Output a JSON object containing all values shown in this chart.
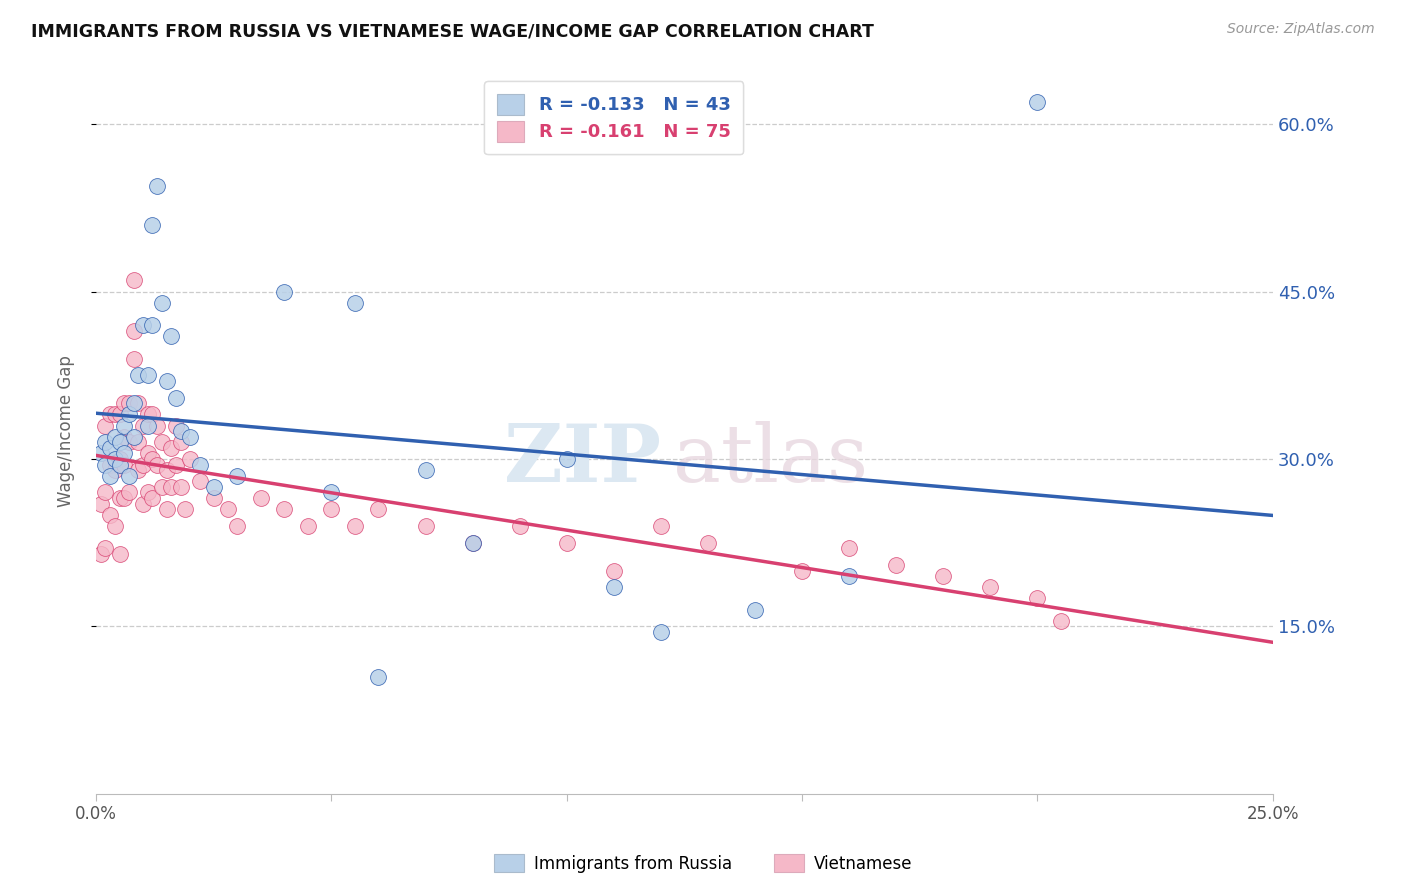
{
  "title": "IMMIGRANTS FROM RUSSIA VS VIETNAMESE WAGE/INCOME GAP CORRELATION CHART",
  "source": "Source: ZipAtlas.com",
  "ylabel": "Wage/Income Gap",
  "right_yticks": [
    0.15,
    0.3,
    0.45,
    0.6
  ],
  "right_ytick_labels": [
    "15.0%",
    "30.0%",
    "45.0%",
    "60.0%"
  ],
  "xmin": 0.0,
  "xmax": 0.25,
  "ymin": 0.0,
  "ymax": 0.65,
  "legend1_label": "R = -0.133   N = 43",
  "legend2_label": "R = -0.161   N = 75",
  "legend_bottom1": "Immigrants from Russia",
  "legend_bottom2": "Vietnamese",
  "color_blue": "#b8d0e8",
  "color_pink": "#f5b8c8",
  "line_color_blue": "#3060b0",
  "line_color_pink": "#d84070",
  "watermark_zip": "ZIP",
  "watermark_atlas": "atlas",
  "russia_x": [
    0.001,
    0.002,
    0.002,
    0.003,
    0.003,
    0.004,
    0.004,
    0.005,
    0.005,
    0.006,
    0.006,
    0.007,
    0.007,
    0.008,
    0.008,
    0.009,
    0.01,
    0.011,
    0.011,
    0.012,
    0.012,
    0.013,
    0.014,
    0.015,
    0.016,
    0.017,
    0.018,
    0.02,
    0.022,
    0.025,
    0.03,
    0.04,
    0.05,
    0.055,
    0.06,
    0.07,
    0.08,
    0.1,
    0.11,
    0.12,
    0.14,
    0.16,
    0.2
  ],
  "russia_y": [
    0.305,
    0.315,
    0.295,
    0.31,
    0.285,
    0.32,
    0.3,
    0.315,
    0.295,
    0.305,
    0.33,
    0.34,
    0.285,
    0.35,
    0.32,
    0.375,
    0.42,
    0.375,
    0.33,
    0.42,
    0.51,
    0.545,
    0.44,
    0.37,
    0.41,
    0.355,
    0.325,
    0.32,
    0.295,
    0.275,
    0.285,
    0.45,
    0.27,
    0.44,
    0.105,
    0.29,
    0.225,
    0.3,
    0.185,
    0.145,
    0.165,
    0.195,
    0.62
  ],
  "viet_x": [
    0.001,
    0.001,
    0.002,
    0.002,
    0.002,
    0.003,
    0.003,
    0.003,
    0.004,
    0.004,
    0.004,
    0.005,
    0.005,
    0.005,
    0.005,
    0.006,
    0.006,
    0.006,
    0.006,
    0.007,
    0.007,
    0.007,
    0.008,
    0.008,
    0.008,
    0.009,
    0.009,
    0.009,
    0.01,
    0.01,
    0.01,
    0.011,
    0.011,
    0.011,
    0.012,
    0.012,
    0.012,
    0.013,
    0.013,
    0.014,
    0.014,
    0.015,
    0.015,
    0.016,
    0.016,
    0.017,
    0.017,
    0.018,
    0.018,
    0.019,
    0.02,
    0.022,
    0.025,
    0.028,
    0.03,
    0.035,
    0.04,
    0.045,
    0.05,
    0.055,
    0.06,
    0.07,
    0.08,
    0.09,
    0.1,
    0.11,
    0.12,
    0.13,
    0.15,
    0.16,
    0.17,
    0.18,
    0.19,
    0.2,
    0.205
  ],
  "viet_y": [
    0.26,
    0.215,
    0.33,
    0.27,
    0.22,
    0.34,
    0.295,
    0.25,
    0.34,
    0.29,
    0.24,
    0.34,
    0.3,
    0.265,
    0.215,
    0.35,
    0.32,
    0.295,
    0.265,
    0.35,
    0.315,
    0.27,
    0.46,
    0.415,
    0.39,
    0.35,
    0.315,
    0.29,
    0.33,
    0.295,
    0.26,
    0.34,
    0.305,
    0.27,
    0.34,
    0.3,
    0.265,
    0.33,
    0.295,
    0.315,
    0.275,
    0.29,
    0.255,
    0.31,
    0.275,
    0.33,
    0.295,
    0.315,
    0.275,
    0.255,
    0.3,
    0.28,
    0.265,
    0.255,
    0.24,
    0.265,
    0.255,
    0.24,
    0.255,
    0.24,
    0.255,
    0.24,
    0.225,
    0.24,
    0.225,
    0.2,
    0.24,
    0.225,
    0.2,
    0.22,
    0.205,
    0.195,
    0.185,
    0.175,
    0.155
  ]
}
